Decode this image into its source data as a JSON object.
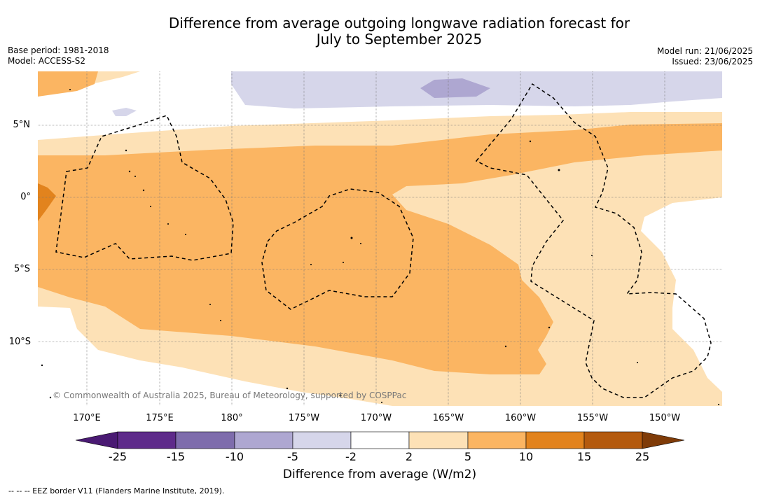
{
  "title_line1": "Difference from average outgoing longwave radiation forecast for",
  "title_line2": "July to September 2025",
  "base_period": "Base period: 1981-2018",
  "model": "Model: ACCESS-S2",
  "model_run": "Model run: 21/06/2025",
  "issued": "Issued: 23/06/2025",
  "lat_labels": [
    "5°N",
    "0°",
    "5°S",
    "10°S"
  ],
  "lon_labels": [
    "170°E",
    "175°E",
    "180°",
    "175°W",
    "170°W",
    "165°W",
    "160°W",
    "155°W",
    "150°W"
  ],
  "copyright": "© Commonwealth of Australia 2025, Bureau of Meteorology, supported by COSPPac",
  "colorbar": {
    "ticks": [
      "-25",
      "-15",
      "-10",
      "-5",
      "-2",
      "2",
      "5",
      "10",
      "15",
      "25"
    ],
    "colors": [
      "#4a1a73",
      "#5e2a8a",
      "#7e6cac",
      "#aea7d1",
      "#d6d6ea",
      "#ffffff",
      "#fde1b6",
      "#fbb562",
      "#e2831d",
      "#b45a0e",
      "#7f3b08"
    ],
    "title": "Difference from average (W/m2)"
  },
  "footnote": "--  --  -- EEZ border V11 (Flanders Marine Institute, 2019)."
}
